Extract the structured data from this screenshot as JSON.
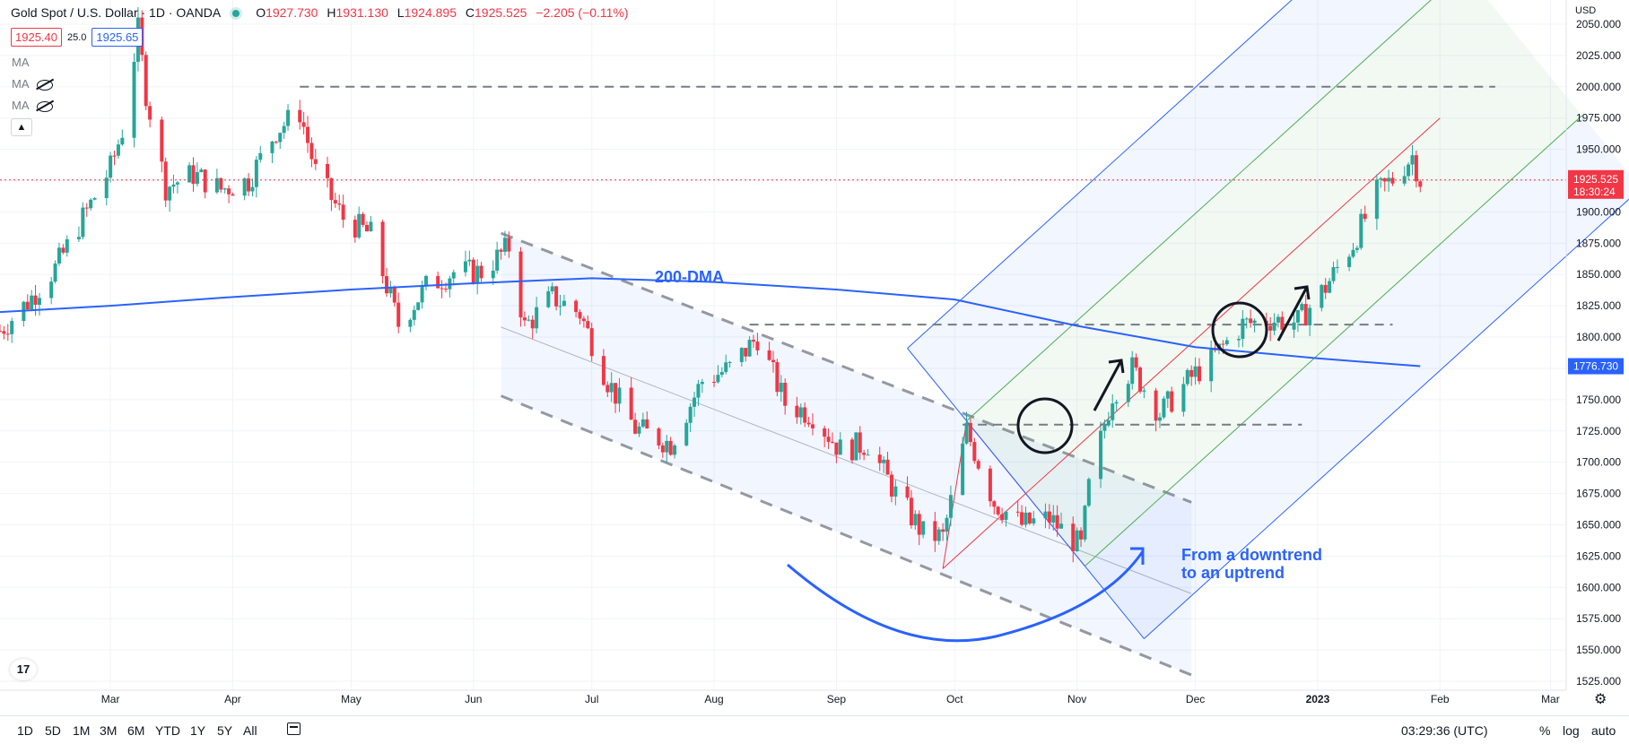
{
  "legend": {
    "symbol_label": "Gold Spot / U.S. Dollar · 1D · OANDA",
    "open_label": "O",
    "open": "1927.730",
    "high_label": "H",
    "high": "1931.130",
    "low_label": "L",
    "low": "1924.895",
    "close_label": "C",
    "close": "1925.525",
    "change": "−2.205 (−0.11%)"
  },
  "quote": {
    "sell": "1925.40",
    "spread": "25.0",
    "buy": "1925.65"
  },
  "indicators": [
    "MA",
    "MA",
    "MA"
  ],
  "price_axis": {
    "currency": "USD",
    "ticks": [
      "2050.000",
      "2025.000",
      "2000.000",
      "1975.000",
      "1950.000",
      "1925.000",
      "1900.000",
      "1875.000",
      "1850.000",
      "1825.000",
      "1800.000",
      "1775.000",
      "1750.000",
      "1725.000",
      "1700.000",
      "1675.000",
      "1650.000",
      "1625.000",
      "1600.000",
      "1575.000",
      "1550.000",
      "1525.000"
    ],
    "tick_values": [
      2050,
      2025,
      2000,
      1975,
      1950,
      1925,
      1900,
      1875,
      1850,
      1825,
      1800,
      1775,
      1750,
      1725,
      1700,
      1675,
      1650,
      1625,
      1600,
      1575,
      1550,
      1525
    ],
    "last_price_label": "1925.525",
    "countdown": "18:30:24",
    "ma_label": "1776.730"
  },
  "time_axis": {
    "labels": [
      "Mar",
      "Apr",
      "May",
      "Jun",
      "Jul",
      "Aug",
      "Sep",
      "Oct",
      "Nov",
      "Dec",
      "2023",
      "Feb",
      "Mar"
    ]
  },
  "annotations": {
    "dma_label": "200-DMA",
    "trend_line1": "From a downtrend",
    "trend_line2": "to an uptrend"
  },
  "bottom_bar": {
    "ranges": [
      "1D",
      "5D",
      "1M",
      "3M",
      "6M",
      "YTD",
      "1Y",
      "5Y",
      "All"
    ],
    "time": "03:29:36 (UTC)",
    "percent": "%",
    "log": "log",
    "auto": "auto"
  },
  "logo_text": "17",
  "colors": {
    "up": "#26a69a",
    "down": "#f23645",
    "ma": "#2962ff",
    "annotation": "#2962ff",
    "pitchfork_outer": "#2962ff",
    "pitchfork_inner": "#4caf50",
    "pitchfork_median": "#f23645"
  },
  "chart_data": {
    "type": "candlestick",
    "title": "Gold Spot / U.S. Dollar · 1D · OANDA",
    "ylim": [
      1525,
      2055
    ],
    "xlim": [
      "2022-02-01",
      "2023-03-05"
    ],
    "x_ticks": [
      "2022-03-01",
      "2022-04-01",
      "2022-05-01",
      "2022-06-01",
      "2022-07-01",
      "2022-08-01",
      "2022-09-01",
      "2022-10-01",
      "2022-11-01",
      "2022-12-01",
      "2023-01-01",
      "2023-02-01",
      "2023-03-01"
    ],
    "last_price": 1925.525,
    "horizontal_levels": [
      {
        "value": 2000,
        "from": "2022-04-18",
        "to": "2023-02-15"
      },
      {
        "value": 1810,
        "from": "2022-08-10",
        "to": "2023-01-20"
      },
      {
        "value": 1730,
        "from": "2022-10-03",
        "to": "2022-12-28"
      }
    ],
    "ma_200": {
      "name": "200-DMA",
      "points": [
        [
          "2022-02-01",
          1820
        ],
        [
          "2022-03-01",
          1825
        ],
        [
          "2022-04-01",
          1832
        ],
        [
          "2022-05-01",
          1838
        ],
        [
          "2022-06-01",
          1843
        ],
        [
          "2022-07-01",
          1847
        ],
        [
          "2022-08-01",
          1844
        ],
        [
          "2022-09-01",
          1838
        ],
        [
          "2022-10-01",
          1830
        ],
        [
          "2022-11-01",
          1809
        ],
        [
          "2022-12-01",
          1792
        ],
        [
          "2023-01-01",
          1783
        ],
        [
          "2023-01-27",
          1776.73
        ]
      ]
    },
    "down_channel": {
      "upper": [
        [
          "2022-06-08",
          1883
        ],
        [
          "2022-11-30",
          1668
        ]
      ],
      "lower": [
        [
          "2022-06-08",
          1753
        ],
        [
          "2022-11-30",
          1530
        ]
      ],
      "median": [
        [
          "2022-06-08",
          1808
        ],
        [
          "2022-11-30",
          1595
        ]
      ]
    },
    "pitchfork": {
      "pivots": [
        [
          "2022-09-28",
          1615
        ],
        [
          "2022-10-04",
          1733
        ],
        [
          "2022-11-03",
          1617
        ]
      ],
      "median_end": [
        "2023-02-20",
        2050
      ]
    },
    "daily_closes": [
      [
        "2022-02-01",
        1805
      ],
      [
        "2022-02-08",
        1828
      ],
      [
        "2022-02-15",
        1855
      ],
      [
        "2022-02-22",
        1895
      ],
      [
        "2022-03-01",
        1935
      ],
      [
        "2022-03-04",
        1965
      ],
      [
        "2022-03-08",
        2045
      ],
      [
        "2022-03-10",
        1995
      ],
      [
        "2022-03-15",
        1920
      ],
      [
        "2022-03-22",
        1930
      ],
      [
        "2022-03-29",
        1918
      ],
      [
        "2022-04-05",
        1925
      ],
      [
        "2022-04-12",
        1965
      ],
      [
        "2022-04-18",
        1980
      ],
      [
        "2022-04-22",
        1932
      ],
      [
        "2022-04-29",
        1895
      ],
      [
        "2022-05-06",
        1882
      ],
      [
        "2022-05-13",
        1810
      ],
      [
        "2022-05-20",
        1840
      ],
      [
        "2022-05-27",
        1852
      ],
      [
        "2022-06-03",
        1852
      ],
      [
        "2022-06-10",
        1872
      ],
      [
        "2022-06-14",
        1808
      ],
      [
        "2022-06-21",
        1832
      ],
      [
        "2022-06-28",
        1819
      ],
      [
        "2022-07-05",
        1765
      ],
      [
        "2022-07-12",
        1727
      ],
      [
        "2022-07-21",
        1715
      ],
      [
        "2022-07-29",
        1765
      ],
      [
        "2022-08-05",
        1775
      ],
      [
        "2022-08-12",
        1800
      ],
      [
        "2022-08-19",
        1747
      ],
      [
        "2022-08-26",
        1738
      ],
      [
        "2022-09-02",
        1710
      ],
      [
        "2022-09-09",
        1715
      ],
      [
        "2022-09-16",
        1675
      ],
      [
        "2022-09-23",
        1643
      ],
      [
        "2022-09-28",
        1640
      ],
      [
        "2022-10-04",
        1725
      ],
      [
        "2022-10-11",
        1668
      ],
      [
        "2022-10-18",
        1650
      ],
      [
        "2022-10-25",
        1655
      ],
      [
        "2022-11-02",
        1632
      ],
      [
        "2022-11-04",
        1680
      ],
      [
        "2022-11-10",
        1755
      ],
      [
        "2022-11-15",
        1775
      ],
      [
        "2022-11-22",
        1739
      ],
      [
        "2022-11-30",
        1768
      ],
      [
        "2022-12-05",
        1782
      ],
      [
        "2022-12-13",
        1810
      ],
      [
        "2022-12-20",
        1814
      ],
      [
        "2022-12-27",
        1812
      ],
      [
        "2023-01-03",
        1840
      ],
      [
        "2023-01-10",
        1875
      ],
      [
        "2023-01-16",
        1915
      ],
      [
        "2023-01-20",
        1926
      ],
      [
        "2023-01-25",
        1945
      ],
      [
        "2023-01-27",
        1925.525
      ]
    ],
    "annotations": [
      "200-DMA",
      "From a downtrend",
      "to an uptrend"
    ]
  }
}
